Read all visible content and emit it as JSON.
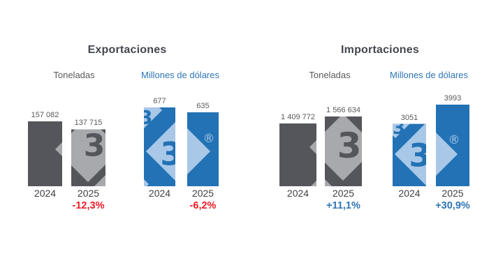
{
  "panels": [
    {
      "title": "Exportaciones",
      "units": [
        {
          "label": "Toneladas",
          "color": "#595959"
        },
        {
          "label": "Millones de dólares",
          "color": "#2e75b6"
        }
      ]
    },
    {
      "title": "Importaciones",
      "units": [
        {
          "label": "Toneladas",
          "color": "#595959"
        },
        {
          "label": "Millones de dólares",
          "color": "#2e75b6"
        }
      ]
    }
  ],
  "divider": {
    "style": "dashed-vertical",
    "color_top": "#a9c8e8",
    "color_bottom": "#2e75b6"
  },
  "watermark": {
    "glyph": "3",
    "registered_mark": "®"
  },
  "chart_data": [
    {
      "type": "bar",
      "panel": "Exportaciones",
      "measure": "Toneladas",
      "categories": [
        "2024",
        "2025"
      ],
      "values": [
        157082,
        137715
      ],
      "value_labels": [
        "157 082",
        "137 715"
      ],
      "change": "-12,3%",
      "change_color": "#ee1c25",
      "bar_color": "#54565b",
      "watermark_color": "#a7a9ac"
    },
    {
      "type": "bar",
      "panel": "Exportaciones",
      "measure": "Millones de dólares",
      "categories": [
        "2024",
        "2025"
      ],
      "values": [
        677,
        635
      ],
      "value_labels": [
        "677",
        "635"
      ],
      "change": "-6,2%",
      "change_color": "#ee1c25",
      "bar_color": "#2272b5",
      "watermark_color": "#a9c8e8"
    },
    {
      "type": "bar",
      "panel": "Importaciones",
      "measure": "Toneladas",
      "categories": [
        "2024",
        "2025"
      ],
      "values": [
        1409772,
        1566634
      ],
      "value_labels": [
        "1 409 772",
        "1 566 634"
      ],
      "change": "+11,1%",
      "change_color": "#2e75b6",
      "bar_color": "#54565b",
      "watermark_color": "#a7a9ac"
    },
    {
      "type": "bar",
      "panel": "Importaciones",
      "measure": "Millones de dólares",
      "categories": [
        "2024",
        "2025"
      ],
      "values": [
        3051,
        3993
      ],
      "value_labels": [
        "3051",
        "3993"
      ],
      "change": "+30,9%",
      "change_color": "#2e75b6",
      "bar_color": "#2272b5",
      "watermark_color": "#a9c8e8"
    }
  ]
}
